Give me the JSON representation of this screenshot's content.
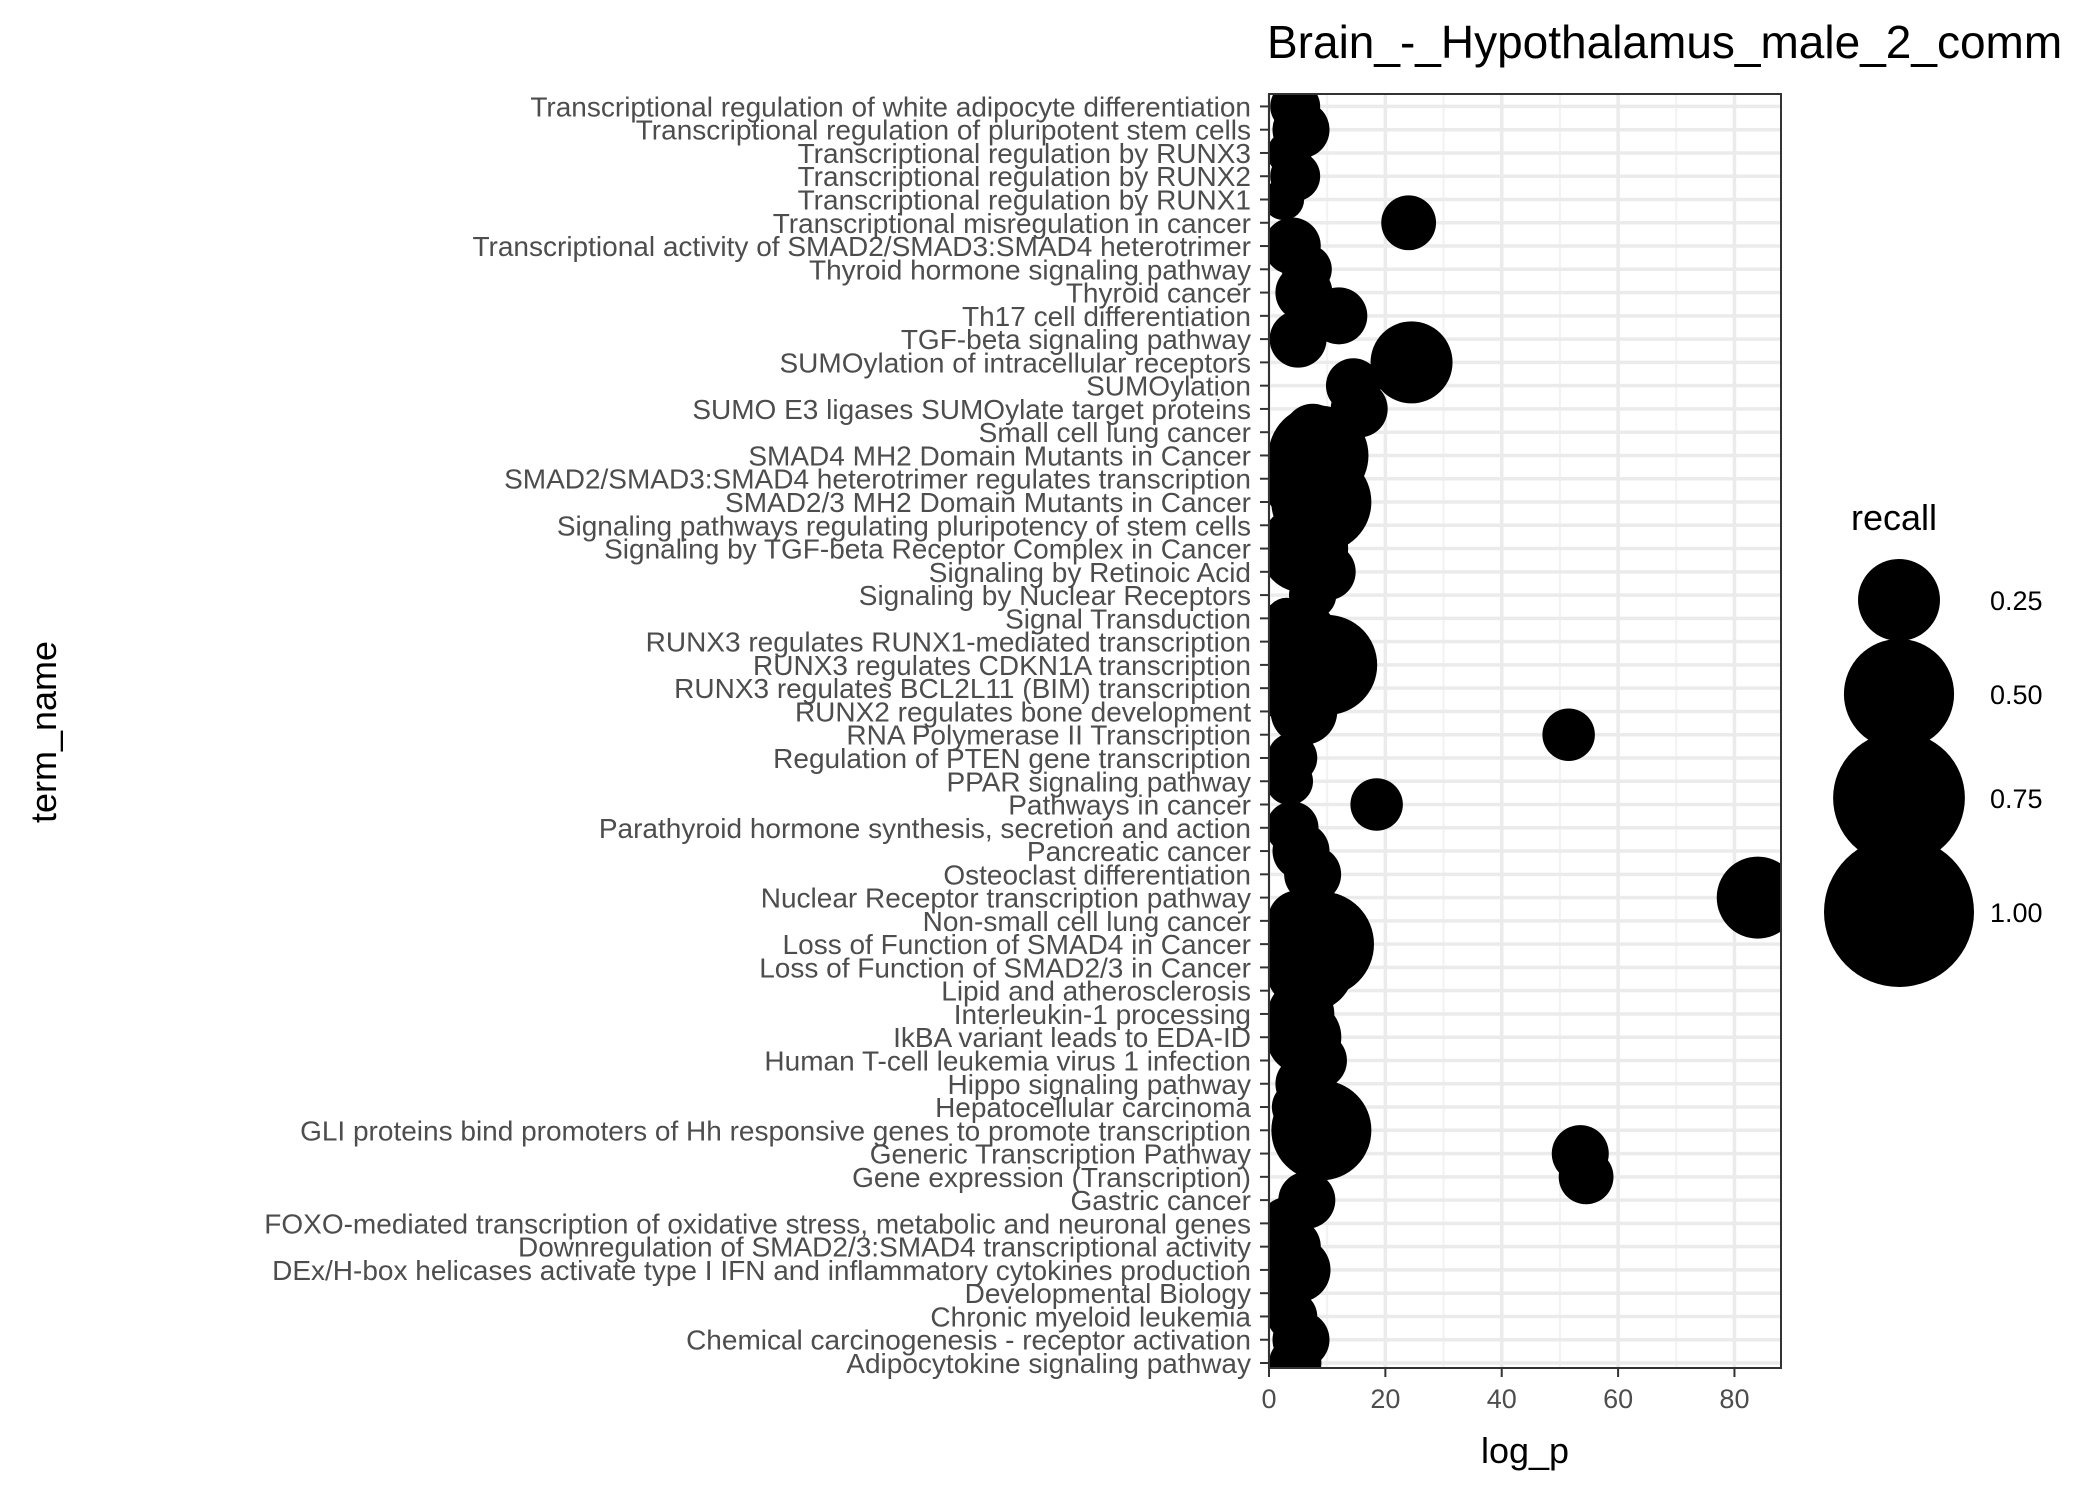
{
  "chart_data": {
    "type": "scatter",
    "title": "Brain_-_Hypothalamus_male_2_comm",
    "xlabel": "log_p",
    "ylabel": "term_name",
    "xlim": [
      0,
      88
    ],
    "x_ticks": [
      0,
      20,
      40,
      60,
      80
    ],
    "x_tick_labels": [
      "0",
      "20",
      "40",
      "60",
      "80"
    ],
    "grid": true,
    "size_legend": {
      "title": "recall",
      "placement": "right",
      "values": [
        0.25,
        0.5,
        0.75,
        1.0
      ],
      "labels": [
        "0.25",
        "0.50",
        "0.75",
        "1.00"
      ]
    },
    "marker_color": "#000000",
    "points": [
      {
        "term": "Adipocytokine signaling pathway",
        "x": 4.5,
        "recall": 0.08
      },
      {
        "term": "Chemical carcinogenesis - receptor activation",
        "x": 5.5,
        "recall": 0.1
      },
      {
        "term": "Chronic myeloid leukemia",
        "x": 4.0,
        "recall": 0.07
      },
      {
        "term": "Developmental Biology",
        "x": 2.5,
        "recall": 0.05
      },
      {
        "term": "DEx/H-box helicases activate type I IFN and inflammatory cytokines production",
        "x": 5.0,
        "recall": 0.14
      },
      {
        "term": "Downregulation of SMAD2/3:SMAD4 transcriptional activity",
        "x": 4.0,
        "recall": 0.1
      },
      {
        "term": "FOXO-mediated transcription of oxidative stress, metabolic and neuronal genes",
        "x": 3.0,
        "recall": 0.08
      },
      {
        "term": "Gastric cancer",
        "x": 6.5,
        "recall": 0.1
      },
      {
        "term": "Gene expression (Transcription)",
        "x": 54.5,
        "recall": 0.09
      },
      {
        "term": "Generic Transcription Pathway",
        "x": 53.5,
        "recall": 0.1
      },
      {
        "term": "GLI proteins bind promoters of Hh responsive genes to promote transcription",
        "x": 9.0,
        "recall": 0.4
      },
      {
        "term": "Hepatocellular carcinoma",
        "x": 5.0,
        "recall": 0.08
      },
      {
        "term": "Hippo signaling pathway",
        "x": 6.0,
        "recall": 0.1
      },
      {
        "term": "Human T-cell leukemia virus 1 infection",
        "x": 8.5,
        "recall": 0.1
      },
      {
        "term": "IkBA variant leads to EDA-ID",
        "x": 6.0,
        "recall": 0.2
      },
      {
        "term": "Interleukin-1 processing",
        "x": 5.5,
        "recall": 0.15
      },
      {
        "term": "Lipid and atherosclerosis",
        "x": 6.0,
        "recall": 0.1
      },
      {
        "term": "Loss of Function of SMAD2/3 in Cancer",
        "x": 7.0,
        "recall": 0.3
      },
      {
        "term": "Loss of Function of SMAD4 in Cancer",
        "x": 9.0,
        "recall": 0.45
      },
      {
        "term": "Non-small cell lung cancer",
        "x": 5.0,
        "recall": 0.12
      },
      {
        "term": "Nuclear Receptor transcription pathway",
        "x": 84.0,
        "recall": 0.25
      },
      {
        "term": "Osteoclast differentiation",
        "x": 7.5,
        "recall": 0.1
      },
      {
        "term": "Pancreatic cancer",
        "x": 5.5,
        "recall": 0.1
      },
      {
        "term": "Parathyroid hormone synthesis, secretion and action",
        "x": 4.0,
        "recall": 0.08
      },
      {
        "term": "Pathways in cancer",
        "x": 18.5,
        "recall": 0.08
      },
      {
        "term": "PPAR signaling pathway",
        "x": 3.5,
        "recall": 0.06
      },
      {
        "term": "Regulation of PTEN gene transcription",
        "x": 4.0,
        "recall": 0.07
      },
      {
        "term": "RNA Polymerase II Transcription",
        "x": 51.5,
        "recall": 0.08
      },
      {
        "term": "RUNX2 regulates bone development",
        "x": 6.0,
        "recall": 0.15
      },
      {
        "term": "RUNX3 regulates BCL2L11 (BIM) transcription",
        "x": 4.5,
        "recall": 0.2
      },
      {
        "term": "RUNX3 regulates CDKN1A transcription",
        "x": 10.0,
        "recall": 0.4
      },
      {
        "term": "RUNX3 regulates RUNX1-mediated transcription",
        "x": 4.5,
        "recall": 0.3
      },
      {
        "term": "Signal Transduction",
        "x": 3.0,
        "recall": 0.04
      },
      {
        "term": "Signaling by Nuclear Receptors",
        "x": 7.5,
        "recall": 0.06
      },
      {
        "term": "Signaling by Retinoic Acid",
        "x": 10.0,
        "recall": 0.1
      },
      {
        "term": "Signaling by TGF-beta Receptor Complex in Cancer",
        "x": 6.0,
        "recall": 0.3
      },
      {
        "term": "Signaling pathways regulating pluripotency of stem cells",
        "x": 6.0,
        "recall": 0.1
      },
      {
        "term": "SMAD2/3 MH2 Domain Mutants in Cancer",
        "x": 9.0,
        "recall": 0.4
      },
      {
        "term": "SMAD2/SMAD3:SMAD4 heterotrimer regulates transcription",
        "x": 7.0,
        "recall": 0.35
      },
      {
        "term": "SMAD4 MH2 Domain Mutants in Cancer",
        "x": 8.5,
        "recall": 0.4
      },
      {
        "term": "Small cell lung cancer",
        "x": 7.5,
        "recall": 0.1
      },
      {
        "term": "SUMO E3 ligases SUMOylate target proteins",
        "x": 15.5,
        "recall": 0.1
      },
      {
        "term": "SUMOylation",
        "x": 14.5,
        "recall": 0.09
      },
      {
        "term": "SUMOylation of intracellular receptors",
        "x": 24.5,
        "recall": 0.25
      },
      {
        "term": "TGF-beta signaling pathway",
        "x": 5.0,
        "recall": 0.1
      },
      {
        "term": "Th17 cell differentiation",
        "x": 12.0,
        "recall": 0.1
      },
      {
        "term": "Thyroid cancer",
        "x": 6.0,
        "recall": 0.1
      },
      {
        "term": "Thyroid hormone signaling pathway",
        "x": 6.5,
        "recall": 0.07
      },
      {
        "term": "Transcriptional activity of SMAD2/SMAD3:SMAD4 heterotrimer",
        "x": 4.0,
        "recall": 0.1
      },
      {
        "term": "Transcriptional misregulation in cancer",
        "x": 24.0,
        "recall": 0.09
      },
      {
        "term": "Transcriptional regulation by RUNX1",
        "x": 2.5,
        "recall": 0.04
      },
      {
        "term": "Transcriptional regulation by RUNX2",
        "x": 4.5,
        "recall": 0.07
      },
      {
        "term": "Transcriptional regulation by RUNX3",
        "x": 3.5,
        "recall": 0.05
      },
      {
        "term": "Transcriptional regulation of pluripotent stem cells",
        "x": 5.5,
        "recall": 0.1
      },
      {
        "term": "Transcriptional regulation of white adipocyte differentiation",
        "x": 4.5,
        "recall": 0.07
      }
    ]
  }
}
